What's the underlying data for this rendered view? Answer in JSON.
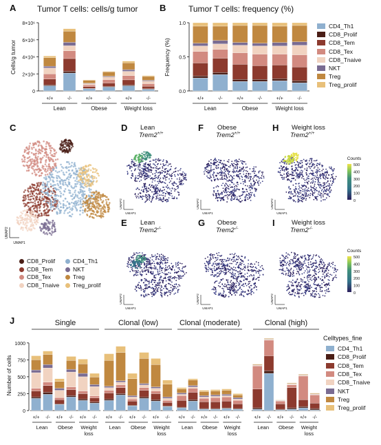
{
  "figure": {
    "panel_labels": [
      "A",
      "B",
      "C",
      "D",
      "E",
      "F",
      "G",
      "H",
      "I",
      "J"
    ]
  },
  "panelA": {
    "title": "Tumor T cells: cells/g tumor",
    "ylabel": "Cells/g tumor",
    "yticks": [
      "0",
      "2×10⁶",
      "4×10⁶",
      "6×10⁶",
      "8×10⁶"
    ],
    "genotypes": [
      "+/+",
      "-/-",
      "+/+",
      "-/-",
      "+/+",
      "-/-"
    ],
    "groups": [
      "Lean",
      "Obese",
      "Weight loss"
    ]
  },
  "panelB": {
    "title": "Tumor T cells: frequency (%)",
    "ylabel": "Frequency (%)",
    "yticks": [
      "0.0",
      "0.5",
      "1.0"
    ],
    "genotypes": [
      "+/+",
      "-/-",
      "+/+",
      "-/-",
      "+/+",
      "-/-"
    ],
    "groups": [
      "Lean",
      "Obese",
      "Weight loss"
    ]
  },
  "legendAB": [
    {
      "name": "CD4_Th1",
      "color": "#8fb0cf"
    },
    {
      "name": "CD8_Prolif",
      "color": "#4a1e16"
    },
    {
      "name": "CD8_Tem",
      "color": "#8c3a2e"
    },
    {
      "name": "CD8_Tex",
      "color": "#d28a80"
    },
    {
      "name": "CD8_Tnaive",
      "color": "#f1d3c1"
    },
    {
      "name": "NKT",
      "color": "#7a6c92"
    },
    {
      "name": "Treg",
      "color": "#c08840"
    },
    {
      "name": "Treg_prolif",
      "color": "#e8c07a"
    }
  ],
  "panelC": {
    "axis_y": "UMAP2",
    "axis_x": "UMAP1",
    "legend": [
      {
        "name": "CD8_Prolif",
        "color": "#4a1e16"
      },
      {
        "name": "CD8_Tem",
        "color": "#8c3a2e"
      },
      {
        "name": "CD8_Tex",
        "color": "#d28a80"
      },
      {
        "name": "CD8_Tnaive",
        "color": "#f1d3c1"
      },
      {
        "name": "CD4_Th1",
        "color": "#8fb0cf"
      },
      {
        "name": "NKT",
        "color": "#7a6c92"
      },
      {
        "name": "Treg",
        "color": "#c08840"
      },
      {
        "name": "Treg_prolif",
        "color": "#e8c07a"
      }
    ]
  },
  "umaps": [
    {
      "key": "D",
      "line1": "Lean",
      "line2": "Trem2",
      "sup": "+/+"
    },
    {
      "key": "F",
      "line1": "Obese",
      "line2": "Trem2",
      "sup": "+/+"
    },
    {
      "key": "H",
      "line1": "Weight loss",
      "line2": "Trem2",
      "sup": "+/+"
    },
    {
      "key": "E",
      "line1": "Lean",
      "line2": "Trem2",
      "sup": "-/-"
    },
    {
      "key": "G",
      "line1": "Obese",
      "line2": "Trem2",
      "sup": "-/-"
    },
    {
      "key": "I",
      "line1": "Weight loss",
      "line2": "Trem2",
      "sup": "-/-"
    }
  ],
  "colorbar": {
    "title": "Counts",
    "ticks": [
      "500",
      "400",
      "300",
      "200",
      "100",
      "0"
    ]
  },
  "panelJ": {
    "ylabel": "Number of cells",
    "yticks": [
      "0",
      "250",
      "500",
      "750",
      "1000"
    ],
    "facets": [
      "Single",
      "Clonal (low)",
      "Clonal (moderate)",
      "Clonal (high)"
    ],
    "genotypes": [
      "+/+",
      "-/-",
      "+/+",
      "-/-",
      "+/+",
      "-/-"
    ],
    "groups": [
      "Lean",
      "Obese",
      "Weight loss"
    ],
    "legend_title": "Celltypes_fine"
  },
  "chart_data": [
    {
      "type": "bar",
      "title": "Tumor T cells: cells/g tumor",
      "ylabel": "Cells/g tumor",
      "ylim": [
        0,
        8000000
      ],
      "categories": [
        "Lean +/+",
        "Lean -/-",
        "Obese +/+",
        "Obese -/-",
        "Weight loss +/+",
        "Weight loss -/-"
      ],
      "stacked": true,
      "series": [
        {
          "name": "CD4_Th1",
          "color": "#8fb0cf",
          "values": [
            600000,
            2100000,
            250000,
            450000,
            600000,
            200000
          ]
        },
        {
          "name": "CD8_Prolif",
          "color": "#4a1e16",
          "values": [
            100000,
            200000,
            50000,
            80000,
            100000,
            50000
          ]
        },
        {
          "name": "CD8_Tem",
          "color": "#8c3a2e",
          "values": [
            700000,
            1500000,
            200000,
            400000,
            600000,
            300000
          ]
        },
        {
          "name": "CD8_Tex",
          "color": "#d28a80",
          "values": [
            600000,
            900000,
            200000,
            400000,
            500000,
            300000
          ]
        },
        {
          "name": "CD8_Tnaive",
          "color": "#f1d3c1",
          "values": [
            700000,
            600000,
            150000,
            300000,
            500000,
            300000
          ]
        },
        {
          "name": "NKT",
          "color": "#7a6c92",
          "values": [
            200000,
            400000,
            50000,
            100000,
            200000,
            100000
          ]
        },
        {
          "name": "Treg",
          "color": "#c08840",
          "values": [
            1000000,
            1300000,
            350000,
            500000,
            800000,
            450000
          ]
        },
        {
          "name": "Treg_prolif",
          "color": "#e8c07a",
          "values": [
            200000,
            300000,
            50000,
            70000,
            200000,
            100000
          ]
        }
      ]
    },
    {
      "type": "bar",
      "title": "Tumor T cells: frequency (%)",
      "ylabel": "Frequency (%)",
      "ylim": [
        0,
        1
      ],
      "categories": [
        "Lean +/+",
        "Lean -/-",
        "Obese +/+",
        "Obese -/-",
        "Weight loss +/+",
        "Weight loss -/-"
      ],
      "stacked": true,
      "series": [
        {
          "name": "CD4_Th1",
          "color": "#8fb0cf",
          "values": [
            0.19,
            0.24,
            0.14,
            0.14,
            0.15,
            0.12
          ]
        },
        {
          "name": "CD8_Prolif",
          "color": "#4a1e16",
          "values": [
            0.03,
            0.03,
            0.03,
            0.03,
            0.03,
            0.03
          ]
        },
        {
          "name": "CD8_Tem",
          "color": "#8c3a2e",
          "values": [
            0.19,
            0.21,
            0.22,
            0.2,
            0.2,
            0.2
          ]
        },
        {
          "name": "CD8_Tex",
          "color": "#d28a80",
          "values": [
            0.17,
            0.13,
            0.17,
            0.17,
            0.16,
            0.18
          ]
        },
        {
          "name": "CD8_Tnaive",
          "color": "#f1d3c1",
          "values": [
            0.08,
            0.08,
            0.11,
            0.12,
            0.12,
            0.14
          ]
        },
        {
          "name": "NKT",
          "color": "#7a6c92",
          "values": [
            0.04,
            0.05,
            0.04,
            0.04,
            0.05,
            0.05
          ]
        },
        {
          "name": "Treg",
          "color": "#c08840",
          "values": [
            0.25,
            0.21,
            0.25,
            0.26,
            0.24,
            0.24
          ]
        },
        {
          "name": "Treg_prolif",
          "color": "#e8c07a",
          "values": [
            0.05,
            0.05,
            0.04,
            0.04,
            0.05,
            0.04
          ]
        }
      ]
    },
    {
      "type": "bar",
      "title": "",
      "ylabel": "Number of cells",
      "ylim": [
        0,
        1100
      ],
      "stacked": true,
      "facets": [
        {
          "name": "Single",
          "categories": [
            "Lean +/+",
            "Lean -/-",
            "Obese +/+",
            "Obese -/-",
            "Weight loss +/+",
            "Weight loss -/-"
          ],
          "series": [
            {
              "name": "CD4_Th1",
              "values": [
                180,
                240,
                90,
                200,
                150,
                110
              ]
            },
            {
              "name": "CD8_Prolif",
              "values": [
                20,
                30,
                10,
                20,
                20,
                15
              ]
            },
            {
              "name": "CD8_Tem",
              "values": [
                90,
                100,
                60,
                90,
                80,
                60
              ]
            },
            {
              "name": "CD8_Tex",
              "values": [
                40,
                50,
                30,
                40,
                40,
                30
              ]
            },
            {
              "name": "CD8_Tnaive",
              "values": [
                230,
                210,
                110,
                220,
                210,
                140
              ]
            },
            {
              "name": "NKT",
              "values": [
                40,
                50,
                30,
                40,
                50,
                30
              ]
            },
            {
              "name": "Treg",
              "values": [
                150,
                150,
                100,
                130,
                140,
                110
              ]
            },
            {
              "name": "Treg_prolif",
              "values": [
                60,
                50,
                40,
                60,
                70,
                55
              ]
            }
          ]
        },
        {
          "name": "Clonal (low)",
          "categories": [
            "Lean +/+",
            "Lean -/-",
            "Obese +/+",
            "Obese -/-",
            "Weight loss +/+",
            "Weight loss -/-"
          ],
          "series": [
            {
              "name": "CD4_Th1",
              "values": [
                150,
                230,
                70,
                180,
                140,
                60
              ]
            },
            {
              "name": "CD8_Prolif",
              "values": [
                20,
                20,
                10,
                20,
                20,
                10
              ]
            },
            {
              "name": "CD8_Tem",
              "values": [
                90,
                90,
                60,
                100,
                90,
                50
              ]
            },
            {
              "name": "CD8_Tex",
              "values": [
                40,
                40,
                30,
                40,
                40,
                30
              ]
            },
            {
              "name": "CD8_Tnaive",
              "values": [
                40,
                40,
                30,
                40,
                40,
                30
              ]
            },
            {
              "name": "NKT",
              "values": [
                20,
                20,
                20,
                20,
                20,
                20
              ]
            },
            {
              "name": "Treg",
              "values": [
                380,
                420,
                250,
                370,
                330,
                190
              ]
            },
            {
              "name": "Treg_prolif",
              "values": [
                100,
                90,
                80,
                90,
                90,
                60
              ]
            }
          ]
        },
        {
          "name": "Clonal (moderate)",
          "categories": [
            "Lean +/+",
            "Lean -/-",
            "Obese +/+",
            "Obese -/-",
            "Weight loss +/+",
            "Weight loss -/-"
          ],
          "series": [
            {
              "name": "CD4_Th1",
              "values": [
                40,
                140,
                20,
                20,
                30,
                20
              ]
            },
            {
              "name": "CD8_Prolif",
              "values": [
                10,
                20,
                10,
                10,
                10,
                10
              ]
            },
            {
              "name": "CD8_Tem",
              "values": [
                100,
                110,
                100,
                100,
                100,
                70
              ]
            },
            {
              "name": "CD8_Tex",
              "values": [
                70,
                60,
                50,
                60,
                60,
                50
              ]
            },
            {
              "name": "CD8_Tnaive",
              "values": [
                20,
                20,
                20,
                20,
                20,
                20
              ]
            },
            {
              "name": "NKT",
              "values": [
                20,
                20,
                20,
                20,
                20,
                20
              ]
            },
            {
              "name": "Treg",
              "values": [
                60,
                80,
                60,
                60,
                60,
                40
              ]
            },
            {
              "name": "Treg_prolif",
              "values": [
                20,
                20,
                20,
                20,
                20,
                20
              ]
            }
          ]
        },
        {
          "name": "Clonal (high)",
          "categories": [
            "Lean +/+",
            "Lean -/-",
            "Obese +/+",
            "Obese -/-",
            "Weight loss +/+",
            "Weight loss -/-"
          ],
          "series": [
            {
              "name": "CD4_Th1",
              "values": [
                20,
                550,
                10,
                20,
                40,
                10
              ]
            },
            {
              "name": "CD8_Prolif",
              "values": [
                20,
                40,
                10,
                20,
                20,
                20
              ]
            },
            {
              "name": "CD8_Tem",
              "values": [
                280,
                220,
                80,
                300,
                100,
                80
              ]
            },
            {
              "name": "CD8_Tex",
              "values": [
                340,
                230,
                40,
                40,
                350,
                120
              ]
            },
            {
              "name": "CD8_Tnaive",
              "values": [
                10,
                10,
                5,
                10,
                10,
                10
              ]
            },
            {
              "name": "NKT",
              "values": [
                5,
                5,
                5,
                5,
                5,
                5
              ]
            },
            {
              "name": "Treg",
              "values": [
                10,
                10,
                5,
                10,
                10,
                10
              ]
            },
            {
              "name": "Treg_prolif",
              "values": [
                5,
                5,
                5,
                5,
                5,
                5
              ]
            }
          ]
        }
      ]
    }
  ]
}
